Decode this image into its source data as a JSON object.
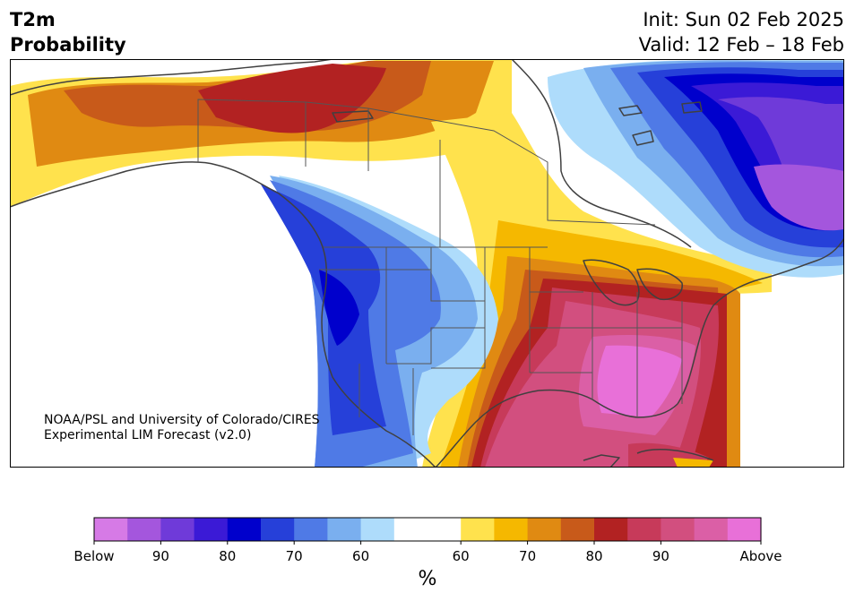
{
  "header": {
    "variable": "T2m",
    "product": "Probability",
    "init": "Init: Sun 02 Feb 2025",
    "valid": "Valid: 12 Feb – 18 Feb"
  },
  "credit": {
    "line1": "NOAA/PSL and University of Colorado/CIRES",
    "line2": "Experimental LIM Forecast (v2.0)"
  },
  "colorbar": {
    "units": "%",
    "below_colors": [
      "#d67ae6",
      "#a456dd",
      "#6f3ad9",
      "#3b1ad6",
      "#0000cc",
      "#2640d9",
      "#4f7ae6",
      "#7aafef",
      "#aedcfb"
    ],
    "neutral_color": "#ffffff",
    "above_colors": [
      "#ffe24d",
      "#f5b800",
      "#e08a12",
      "#c85a1a",
      "#b22222",
      "#c73a5a",
      "#d24f7f",
      "#db5fa6",
      "#e870d8"
    ],
    "tick_labels": [
      "Below",
      "90",
      "80",
      "70",
      "60",
      "60",
      "70",
      "80",
      "90",
      "Above"
    ]
  },
  "map": {
    "region": "North America",
    "above_color_hot": "#e870d8",
    "below_color_cold": "#0000cc"
  }
}
